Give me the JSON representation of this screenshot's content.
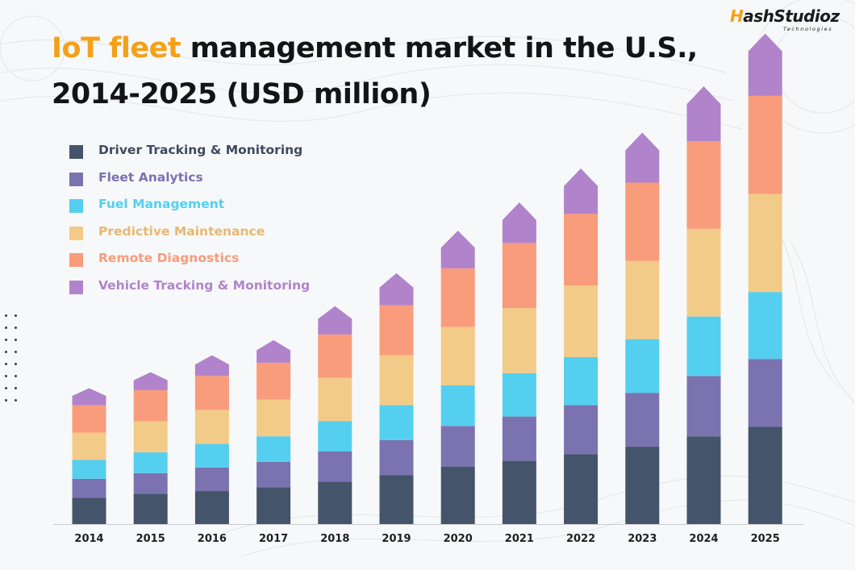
{
  "title": {
    "highlight": "IoT fleet",
    "rest_line1": "management market in the U.S.,",
    "line2": "2014-2025 (USD million)"
  },
  "brand": {
    "name_lead": "H",
    "name_rest": "ashStudioz",
    "sub": "Technologies"
  },
  "chart_data": {
    "type": "bar",
    "stacked": true,
    "title": "IoT fleet management market in the U.S., 2014-2025 (USD million)",
    "xlabel": "",
    "ylabel": "",
    "legend_position": "top-left",
    "categories": [
      "2014",
      "2015",
      "2016",
      "2017",
      "2018",
      "2019",
      "2020",
      "2021",
      "2022",
      "2023",
      "2024",
      "2025"
    ],
    "series": [
      {
        "name": "Driver Tracking & Monitoring",
        "color": "#44546a",
        "values": [
          28,
          32,
          35,
          39,
          45,
          52,
          61,
          67,
          74,
          82,
          93,
          103
        ]
      },
      {
        "name": "Fleet Analytics",
        "color": "#7b72b0",
        "values": [
          20,
          22,
          25,
          27,
          32,
          37,
          43,
          47,
          52,
          57,
          64,
          72
        ]
      },
      {
        "name": "Fuel Management",
        "color": "#54cfef",
        "values": [
          20,
          22,
          25,
          27,
          32,
          37,
          43,
          46,
          51,
          57,
          63,
          71
        ]
      },
      {
        "name": "Predictive Maintenance",
        "color": "#f3cb88",
        "values": [
          29,
          33,
          36,
          39,
          46,
          53,
          62,
          69,
          76,
          83,
          93,
          104
        ]
      },
      {
        "name": "Remote Diagnostics",
        "color": "#f89c7c",
        "values": [
          29,
          33,
          36,
          39,
          46,
          53,
          62,
          69,
          76,
          83,
          93,
          104
        ]
      },
      {
        "name": "Vehicle Tracking & Monitoring",
        "color": "#b183ca",
        "values": [
          18,
          19,
          22,
          24,
          30,
          34,
          40,
          43,
          48,
          53,
          58,
          66
        ]
      }
    ]
  }
}
